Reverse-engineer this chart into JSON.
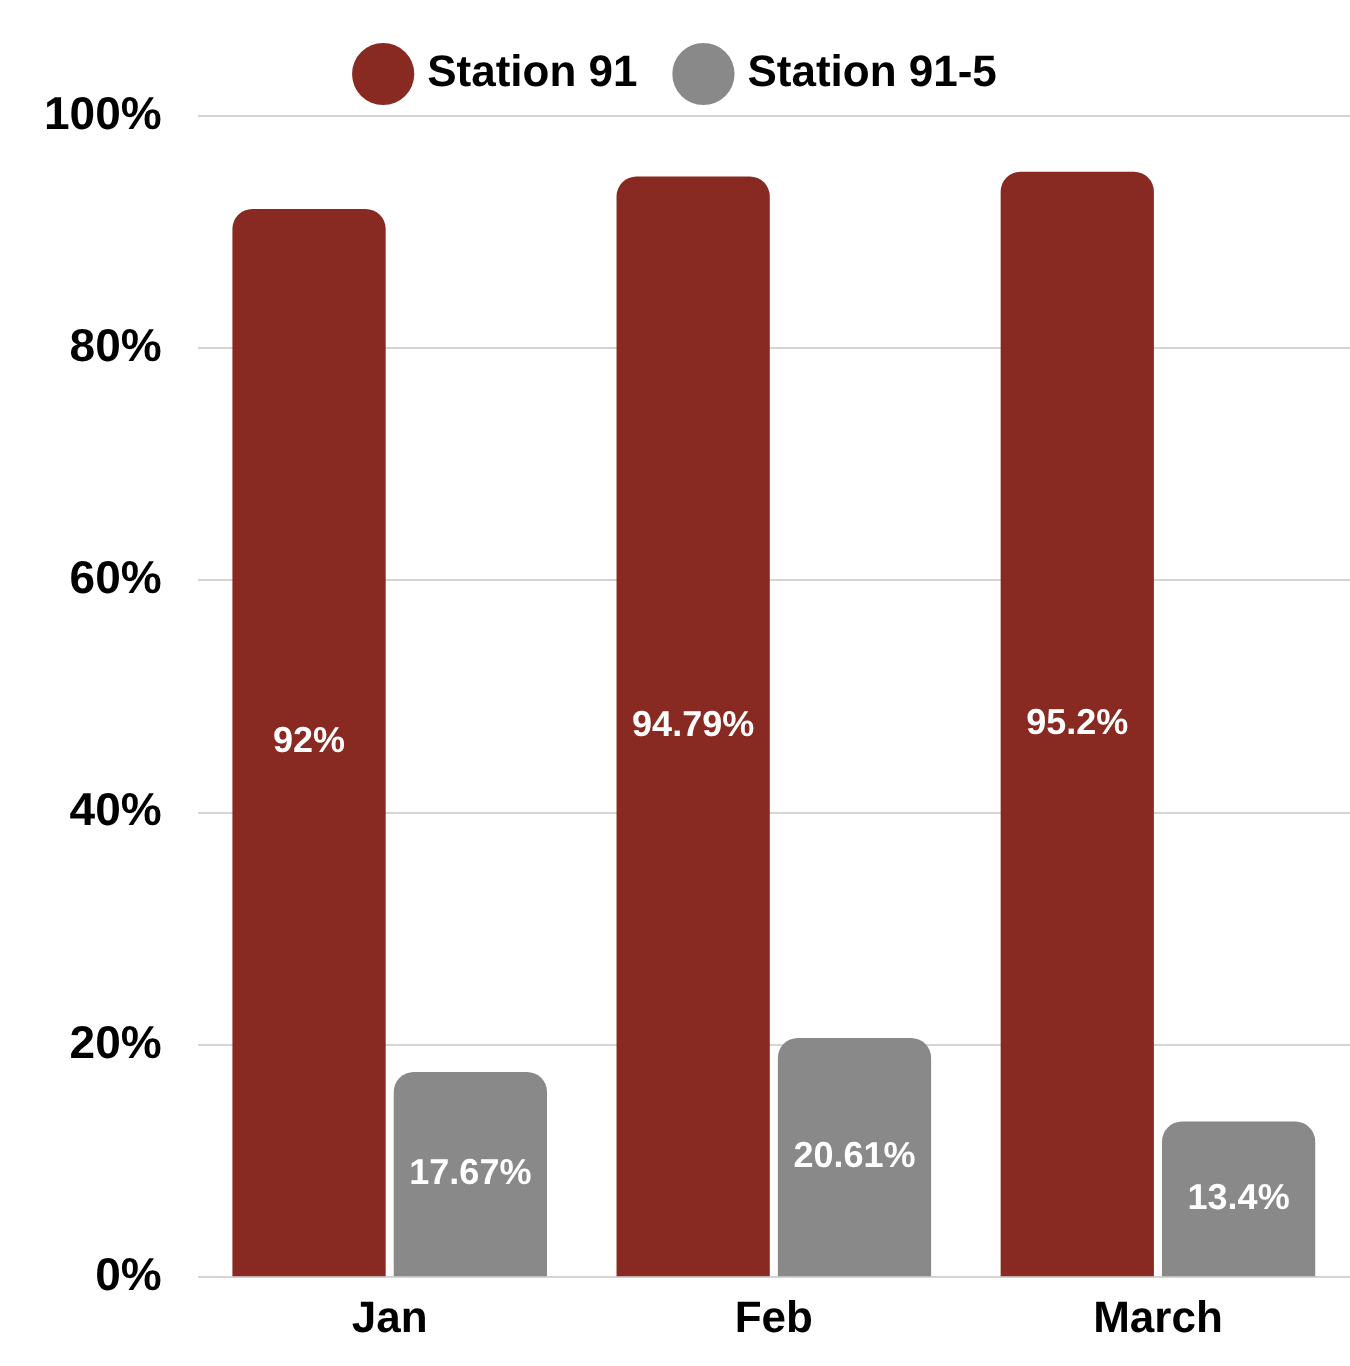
{
  "chart_data": {
    "type": "bar",
    "categories": [
      "Jan",
      "Feb",
      "March"
    ],
    "series": [
      {
        "name": "Station 91",
        "color": "#882a22",
        "values": [
          92,
          94.79,
          95.2
        ],
        "value_labels": [
          "92%",
          "94.79%",
          "95.2%"
        ]
      },
      {
        "name": "Station 91-5",
        "color": "#898989",
        "values": [
          17.67,
          20.61,
          13.4
        ],
        "value_labels": [
          "17.67%",
          "20.61%",
          "13.4%"
        ]
      }
    ],
    "ylim": [
      0,
      100
    ],
    "yticks": [
      {
        "value": 0,
        "label": "0%"
      },
      {
        "value": 20,
        "label": "20%"
      },
      {
        "value": 40,
        "label": "40%"
      },
      {
        "value": 60,
        "label": "60%"
      },
      {
        "value": 80,
        "label": "80%"
      },
      {
        "value": 100,
        "label": "100%"
      }
    ],
    "grid": "y",
    "legend": "top"
  }
}
